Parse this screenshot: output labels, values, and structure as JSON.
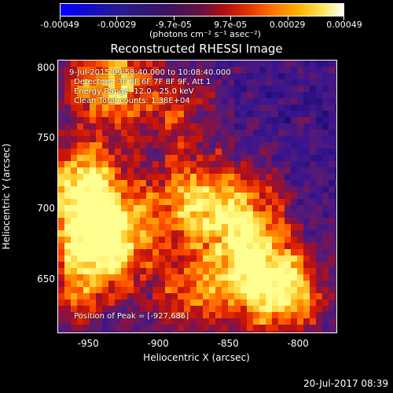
{
  "chart_data": {
    "type": "heatmap",
    "title": "Reconstructed RHESSI Image",
    "xlabel": "Heliocentric X (arcsec)",
    "ylabel": "Heliocentric Y (arcsec)",
    "xlim": [
      -972,
      -772
    ],
    "ylim": [
      612,
      806
    ],
    "x_ticks": [
      -950,
      -900,
      -850,
      -800
    ],
    "y_ticks": [
      650,
      700,
      750,
      800
    ],
    "colorbar": {
      "ticks": [
        "-0.00049",
        "-0.00029",
        "-9.7e-05",
        "9.7e-05",
        "0.00029",
        "0.00049"
      ],
      "units_label": "(photons cm⁻² s⁻¹ asec⁻²)",
      "range": [
        -0.00049,
        0.00049
      ]
    },
    "annotations": {
      "time": "9-Jul-2015 09:58:40.000 to 10:08:40.000",
      "detectors": "Detectors: 3F 5F 6F 7F 8F 9F, Att 1",
      "energy": "Energy Range: 12.0 - 25.0 keV",
      "clean": "Clean    Total counts: 1.38E+04",
      "peak": "Position of Peak = [-927,686]"
    },
    "bright_regions": [
      {
        "x": -940,
        "y": 680,
        "level": 1.0
      },
      {
        "x": -955,
        "y": 720,
        "level": 0.75
      },
      {
        "x": -935,
        "y": 790,
        "level": 0.7
      },
      {
        "x": -880,
        "y": 705,
        "level": 0.6
      },
      {
        "x": -840,
        "y": 700,
        "level": 0.55
      },
      {
        "x": -810,
        "y": 640,
        "level": 0.7
      },
      {
        "x": -835,
        "y": 660,
        "level": 0.6
      },
      {
        "x": -880,
        "y": 640,
        "level": 0.45
      },
      {
        "x": -960,
        "y": 640,
        "level": 0.4
      },
      {
        "x": -885,
        "y": 770,
        "level": 0.35
      }
    ]
  },
  "footer_timestamp": "20-Jul-2017 08:39"
}
